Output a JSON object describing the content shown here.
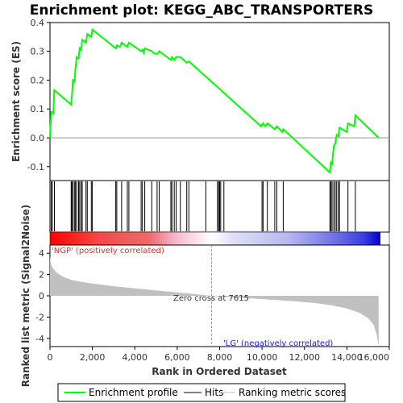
{
  "colors": {
    "es_line": "#00ff00",
    "hit_line": "#000000",
    "metric_fill": "#c0c0c0",
    "pos_label": "#e03030",
    "neg_label": "#2020d0",
    "zero_text": "#333333"
  },
  "legend": {
    "items": [
      {
        "label": "Enrichment profile",
        "icon": "green-line-icon"
      },
      {
        "label": "Hits",
        "icon": "black-line-icon"
      },
      {
        "label": "Ranking metric scores",
        "icon": "gray-line-icon"
      }
    ]
  },
  "chart_data": {
    "type": "line",
    "title": "Enrichment plot: KEGG_ABC_TRANSPORTERS",
    "n_genes": 15500,
    "es_panel": {
      "ylabel": "Enrichment score (ES)",
      "ylim": [
        -0.15,
        0.4
      ],
      "yticks": [
        "-0.1",
        "0.0",
        "0.1",
        "0.2",
        "0.3",
        "0.4"
      ],
      "points": [
        [
          0,
          0.0
        ],
        [
          60,
          0.09
        ],
        [
          160,
          0.085
        ],
        [
          200,
          0.165
        ],
        [
          1000,
          0.115
        ],
        [
          1050,
          0.16
        ],
        [
          1080,
          0.2
        ],
        [
          1150,
          0.195
        ],
        [
          1200,
          0.24
        ],
        [
          1260,
          0.28
        ],
        [
          1350,
          0.275
        ],
        [
          1400,
          0.31
        ],
        [
          1470,
          0.305
        ],
        [
          1520,
          0.34
        ],
        [
          1700,
          0.33
        ],
        [
          1760,
          0.36
        ],
        [
          1950,
          0.35
        ],
        [
          2000,
          0.375
        ],
        [
          3100,
          0.31
        ],
        [
          3150,
          0.32
        ],
        [
          3300,
          0.315
        ],
        [
          3380,
          0.33
        ],
        [
          3650,
          0.315
        ],
        [
          3720,
          0.33
        ],
        [
          4300,
          0.3
        ],
        [
          4360,
          0.305
        ],
        [
          4420,
          0.295
        ],
        [
          4470,
          0.31
        ],
        [
          4800,
          0.3
        ],
        [
          4860,
          0.295
        ],
        [
          5050,
          0.29
        ],
        [
          5150,
          0.3
        ],
        [
          5700,
          0.27
        ],
        [
          5750,
          0.28
        ],
        [
          5860,
          0.27
        ],
        [
          5950,
          0.28
        ],
        [
          6150,
          0.28
        ],
        [
          6450,
          0.26
        ],
        [
          6550,
          0.265
        ],
        [
          9950,
          0.04
        ],
        [
          10050,
          0.05
        ],
        [
          10150,
          0.04
        ],
        [
          10250,
          0.05
        ],
        [
          10600,
          0.03
        ],
        [
          10700,
          0.04
        ],
        [
          10950,
          0.02
        ],
        [
          11000,
          0.03
        ],
        [
          13200,
          -0.12
        ],
        [
          13250,
          -0.085
        ],
        [
          13300,
          -0.09
        ],
        [
          13380,
          -0.03
        ],
        [
          13450,
          -0.02
        ],
        [
          13520,
          0.01
        ],
        [
          13600,
          0.005
        ],
        [
          13650,
          0.035
        ],
        [
          14000,
          0.02
        ],
        [
          14050,
          0.05
        ],
        [
          14350,
          0.04
        ],
        [
          14400,
          0.078
        ],
        [
          15500,
          0.0
        ]
      ]
    },
    "hits": [
      60,
      110,
      210,
      1000,
      1030,
      1080,
      1150,
      1200,
      1260,
      1350,
      1400,
      1470,
      1520,
      1700,
      1760,
      1950,
      2000,
      3100,
      3150,
      3380,
      3650,
      3720,
      4300,
      4360,
      4470,
      4800,
      5050,
      5150,
      5700,
      5750,
      5860,
      5950,
      6150,
      6450,
      6550,
      7350,
      7900,
      7950,
      8000,
      8050,
      8200,
      10000,
      10050,
      10250,
      10600,
      10700,
      11000,
      13200,
      13250,
      13300,
      13380,
      13450,
      13520,
      13600,
      13650,
      14050,
      14400
    ],
    "metric_panel": {
      "ylabel": "Ranked list metric (Signal2Noise)",
      "ylim": [
        -5,
        5
      ],
      "yticks": [
        "-4",
        "-2",
        "0",
        "2",
        "4"
      ],
      "xlabel": "Rank in Ordered Dataset",
      "xlim": [
        0,
        16000
      ],
      "xticks": [
        "0",
        "2,000",
        "4,000",
        "6,000",
        "8,000",
        "10,000",
        "12,000",
        "14,000",
        "16,000"
      ],
      "zero_cross": 7615,
      "zero_cross_label": "Zero cross at 7615",
      "pos_label": "'NGP' (positively correlated)",
      "neg_label": "'LG' (negatively correlated)",
      "curve": [
        [
          0,
          3.7
        ],
        [
          30,
          3.2
        ],
        [
          100,
          2.7
        ],
        [
          300,
          2.2
        ],
        [
          600,
          1.8
        ],
        [
          1000,
          1.5
        ],
        [
          1500,
          1.3
        ],
        [
          2000,
          1.15
        ],
        [
          3000,
          0.9
        ],
        [
          4000,
          0.7
        ],
        [
          5000,
          0.5
        ],
        [
          6000,
          0.32
        ],
        [
          7000,
          0.12
        ],
        [
          7615,
          0.0
        ],
        [
          8500,
          -0.12
        ],
        [
          9500,
          -0.25
        ],
        [
          10500,
          -0.38
        ],
        [
          11500,
          -0.5
        ],
        [
          12500,
          -0.68
        ],
        [
          13300,
          -0.9
        ],
        [
          14000,
          -1.2
        ],
        [
          14600,
          -1.6
        ],
        [
          15000,
          -2.1
        ],
        [
          15250,
          -2.7
        ],
        [
          15400,
          -3.6
        ],
        [
          15500,
          -4.7
        ]
      ]
    }
  }
}
